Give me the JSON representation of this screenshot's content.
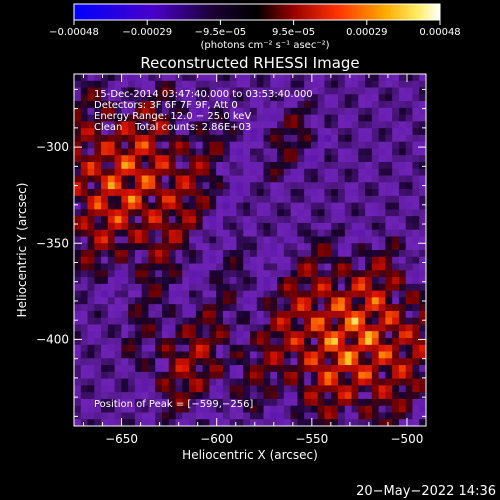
{
  "chart_data": {
    "type": "heatmap",
    "title": "Reconstructed RHESSI Image",
    "xlabel": "Heliocentric X (arcsec)",
    "ylabel": "Heliocentric Y (arcsec)",
    "xlim": [
      -675,
      -490
    ],
    "ylim": [
      -445,
      -262
    ],
    "x_ticks": [
      -650,
      -600,
      -550,
      -500
    ],
    "x_tick_labels": [
      "−650",
      "−600",
      "−550",
      "−500"
    ],
    "y_ticks": [
      -300,
      -350,
      -400
    ],
    "y_tick_labels": [
      "−300",
      "−350",
      "−400"
    ],
    "colorbar": {
      "min": -0.00048,
      "max": 0.00048,
      "tick_labels": [
        "−0.00048",
        "−0.00029",
        "−9.5e−05",
        "9.5e−05",
        "0.00029",
        "0.00048"
      ],
      "unit_text": "(photons cm⁻² s⁻¹ asec⁻²)",
      "colormap": [
        "#0000ff",
        "#5500cc",
        "#000000",
        "#b00000",
        "#ff4400",
        "#ff9900",
        "#ffee55",
        "#ffffff"
      ]
    },
    "annotations": [
      "15-Dec-2014 03:47:40.000 to 03:53:40.000",
      "Detectors: 3F 6F 7F 9F, Att 0",
      "Energy Range: 12.0 − 25.0 keV",
      "Clean    Total counts: 2.86E+03"
    ],
    "peak_label": "Position of Peak = [−599,−256]",
    "grid": false
  },
  "footer": {
    "timestamp": "20−May−2022 14:36"
  }
}
